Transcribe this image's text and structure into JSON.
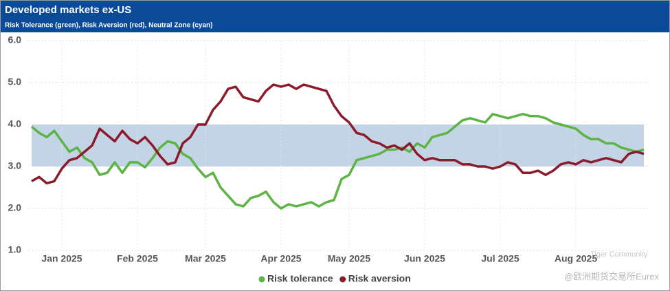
{
  "chart_data": {
    "type": "line",
    "title": "Developed markets ex-US",
    "subtitle": "Risk Tolerance (green), Risk Aversion (red), Neutral Zone (cyan)",
    "categories": [
      null,
      null,
      null,
      null,
      "Jan 2025",
      null,
      null,
      null,
      null,
      null,
      null,
      null,
      null,
      null,
      "Feb 2025",
      null,
      null,
      null,
      null,
      null,
      null,
      null,
      null,
      "Mar 2025",
      null,
      null,
      null,
      null,
      null,
      null,
      null,
      null,
      null,
      "Apr 2025",
      null,
      null,
      null,
      null,
      null,
      null,
      null,
      null,
      "May 2025",
      null,
      null,
      null,
      null,
      null,
      null,
      null,
      null,
      null,
      "Jun 2025",
      null,
      null,
      null,
      null,
      null,
      null,
      null,
      null,
      null,
      "Jul 2025",
      null,
      null,
      null,
      null,
      null,
      null,
      null,
      null,
      null,
      "Aug 2025",
      null,
      null,
      null,
      null,
      null,
      null,
      null,
      null,
      null
    ],
    "series": [
      {
        "name": "Risk tolerance",
        "color": "#5cb445",
        "values": [
          3.95,
          3.8,
          3.7,
          3.85,
          3.6,
          3.35,
          3.45,
          3.2,
          3.1,
          2.8,
          2.85,
          3.1,
          2.85,
          3.1,
          3.1,
          2.98,
          3.2,
          3.45,
          3.6,
          3.55,
          3.3,
          3.2,
          2.95,
          2.75,
          2.85,
          2.5,
          2.3,
          2.1,
          2.05,
          2.25,
          2.3,
          2.4,
          2.15,
          2.0,
          2.1,
          2.05,
          2.1,
          2.15,
          2.05,
          2.15,
          2.2,
          2.7,
          2.8,
          3.15,
          3.2,
          3.25,
          3.3,
          3.4,
          3.4,
          3.45,
          3.35,
          3.55,
          3.45,
          3.7,
          3.75,
          3.8,
          3.95,
          4.1,
          4.15,
          4.1,
          4.05,
          4.25,
          4.2,
          4.15,
          4.2,
          4.25,
          4.2,
          4.2,
          4.15,
          4.05,
          4.0,
          3.95,
          3.9,
          3.75,
          3.65,
          3.65,
          3.55,
          3.55,
          3.45,
          3.4,
          3.35,
          3.4
        ]
      },
      {
        "name": "Risk aversion",
        "color": "#8b1a2b",
        "values": [
          2.65,
          2.75,
          2.6,
          2.65,
          2.95,
          3.15,
          3.2,
          3.35,
          3.5,
          3.9,
          3.75,
          3.6,
          3.85,
          3.65,
          3.55,
          3.7,
          3.5,
          3.25,
          3.05,
          3.1,
          3.55,
          3.7,
          4.0,
          4.0,
          4.35,
          4.55,
          4.85,
          4.9,
          4.65,
          4.6,
          4.55,
          4.8,
          4.95,
          4.9,
          4.95,
          4.85,
          4.95,
          4.9,
          4.85,
          4.8,
          4.45,
          4.2,
          4.05,
          3.8,
          3.75,
          3.6,
          3.55,
          3.45,
          3.5,
          3.4,
          3.55,
          3.3,
          3.15,
          3.2,
          3.15,
          3.15,
          3.15,
          3.05,
          3.05,
          3.0,
          3.0,
          2.95,
          3.0,
          3.1,
          3.05,
          2.85,
          2.85,
          2.9,
          2.8,
          2.9,
          3.05,
          3.1,
          3.05,
          3.15,
          3.1,
          3.15,
          3.2,
          3.15,
          3.1,
          3.3,
          3.35,
          3.3
        ]
      }
    ],
    "neutral_zone": [
      3,
      4
    ],
    "neutral_color": "#c2d4e6",
    "ylim": [
      1,
      6
    ],
    "yticks": [
      {
        "value": 1,
        "label": "1.0"
      },
      {
        "value": 2,
        "label": "2.0"
      },
      {
        "value": 3,
        "label": "3.0"
      },
      {
        "value": 4,
        "label": "4.0"
      },
      {
        "value": 5,
        "label": "5.0"
      },
      {
        "value": 6,
        "label": "6.0"
      }
    ],
    "grid": true,
    "legend": "bottom",
    "watermark": "Tiger Community",
    "source": "@欧洲期货交易所Eurex"
  }
}
